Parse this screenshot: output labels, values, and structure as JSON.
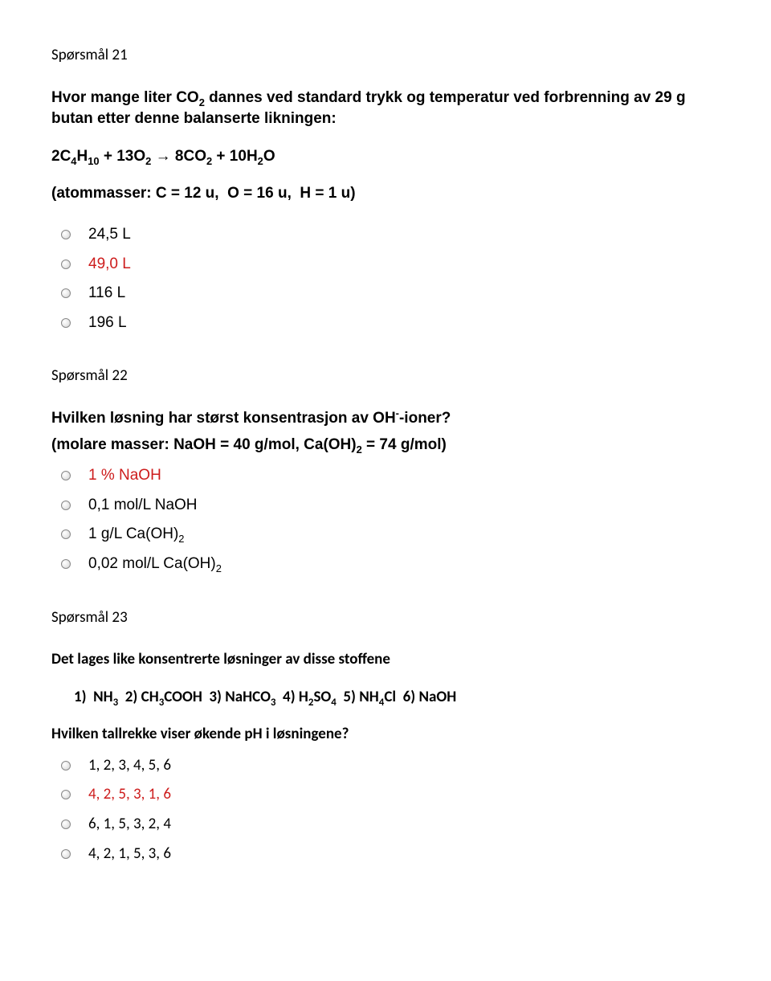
{
  "q21": {
    "heading": "Spørsmål 21",
    "text_html": "Hvor mange liter CO<sub>2</sub> dannes ved standard trykk og temperatur ved forbrenning av 29 g butan etter denne balanserte likningen:",
    "equation_html": "2C<sub>4</sub>H<sub>10</sub> + 13O<sub>2</sub> → 8CO<sub>2</sub> + 10H<sub>2</sub>O",
    "atoms_html": "(atommasser: C = 12 u,&nbsp;&nbsp;O = 16 u,&nbsp;&nbsp;H = 1 u)",
    "options": [
      {
        "label": "24,5 L",
        "highlight": false
      },
      {
        "label": "49,0 L",
        "highlight": true
      },
      {
        "label": "116 L",
        "highlight": false
      },
      {
        "label": "196 L",
        "highlight": false
      }
    ]
  },
  "q22": {
    "heading": "Spørsmål 22",
    "text_html": "Hvilken løsning har størst konsentrasjon av OH<sup>-</sup>-ioner?",
    "sub_html": "(molare masser: NaOH = 40 g/mol, Ca(OH)<sub>2</sub> = 74 g/mol)",
    "options": [
      {
        "label_html": "1 % NaOH",
        "highlight": true
      },
      {
        "label_html": "0,1 mol/L NaOH",
        "highlight": false
      },
      {
        "label_html": "1 g/L Ca(OH)<sub>2</sub>",
        "highlight": false
      },
      {
        "label_html": "0,02 mol/L Ca(OH)<sub>2</sub>",
        "highlight": false
      }
    ]
  },
  "q23": {
    "heading": "Spørsmål 23",
    "text1_html": "Det lages like konsentrerte løsninger av disse stoffene",
    "list_html": "1)&nbsp;&nbsp;NH<sub>3</sub>&nbsp;&nbsp;2) CH<sub>3</sub>COOH&nbsp;&nbsp;3) NaHCO<sub>3</sub>&nbsp;&nbsp;4) H<sub>2</sub>SO<sub>4</sub>&nbsp;&nbsp;5) NH<sub>4</sub>Cl&nbsp;&nbsp;6) NaOH",
    "text2_html": "Hvilken tallrekke viser økende pH i løsningene?",
    "options": [
      {
        "label": "1, 2, 3, 4, 5, 6",
        "highlight": false
      },
      {
        "label": "4, 2, 5, 3, 1, 6",
        "highlight": true
      },
      {
        "label": "6, 1, 5, 3, 2, 4",
        "highlight": false
      },
      {
        "label": "4, 2, 1, 5, 3, 6",
        "highlight": false
      }
    ]
  },
  "colors": {
    "highlight": "#cd1c1c",
    "text": "#000000",
    "background": "#ffffff"
  }
}
